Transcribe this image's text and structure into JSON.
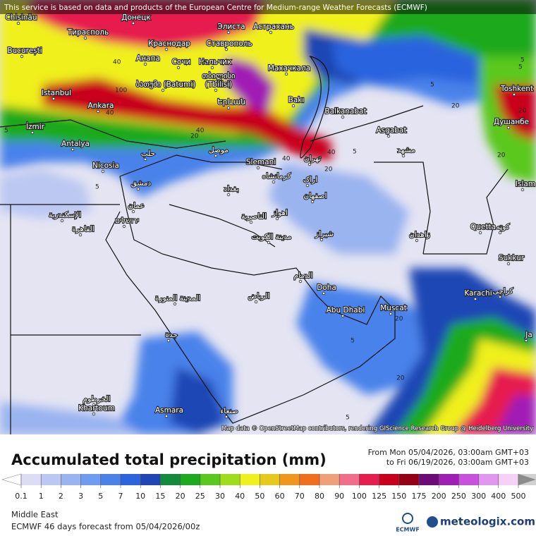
{
  "header": {
    "notice": "This service is based on data and products of the European Centre for Medium-range Weather Forecasts (ECMWF)",
    "attribution": "Map data © OpenStreetMap contributors, rendering GIScience Research Group @ Heidelberg University"
  },
  "map": {
    "cities": [
      "Chisinău",
      "Донецк",
      "Элиста",
      "Астрахань",
      "Тирасполь",
      "Краснодар",
      "Ставрополь",
      "București",
      "Анапа",
      "Сочи",
      "Нальчик",
      "ბათუმი (Batumi)",
      "თბილისი",
      "(Tbilisi)",
      "Махачкала",
      "Istanbul",
      "Bakı",
      "Ankara",
      "Երևան",
      "Balkanabat",
      "Toshkent",
      "Душанбе",
      "İzmir",
      "Asgabat",
      "Antalya",
      "Nicosia",
      "Slemani",
      "تهران",
      "مشهد",
      "حلب",
      "موصل",
      "کرمانشاه",
      "اراک",
      "دمشق",
      "بغداد",
      "اصفهان",
      "عمان",
      "ירושלים",
      "الإسكندرية",
      "القاهرة",
      "اهواز",
      "الناصرية",
      "مدينة الكويت",
      "شیراز",
      "زاهدان",
      "Quetta",
      "کوټه",
      "Sukkur",
      "الدمام",
      "Doha",
      "الرياض",
      "المدينة المنورة",
      "Karachi",
      "کراچی",
      "Abu Dhabi",
      "Muscat",
      "جدة",
      "الخرطوم",
      "Khartoum",
      "Asmara",
      "صنعاء",
      "Islam",
      "Ja"
    ],
    "contour_labels": [
      40,
      20,
      100,
      40,
      40,
      20,
      40,
      40,
      20,
      5,
      5,
      5,
      5,
      20,
      5,
      20,
      5,
      20,
      5,
      20,
      20,
      5
    ]
  },
  "legend": {
    "title": "Accumulated total precipitation (mm)",
    "from": "From Mon 05/04/2026, 03:00am GMT+03",
    "to": "to Fri 06/19/2026, 03:00am GMT+03",
    "ticks": [
      0.1,
      1,
      2,
      3,
      5,
      7,
      10,
      15,
      20,
      25,
      30,
      40,
      50,
      60,
      70,
      80,
      90,
      100,
      125,
      150,
      175,
      200,
      250,
      300,
      400,
      500
    ],
    "colors": [
      "#ffffff",
      "#dcdcf5",
      "#bcc8f2",
      "#9ab4f0",
      "#6e9cf0",
      "#4a82ea",
      "#2c64de",
      "#1e46b4",
      "#128c3c",
      "#1eaa1e",
      "#5ac81e",
      "#a0dc1e",
      "#f0f01e",
      "#e6c81e",
      "#f0961e",
      "#f06e1e",
      "#f0a078",
      "#f06e8c",
      "#e61e50",
      "#c8001e",
      "#960014",
      "#6e0a78",
      "#a01eb4",
      "#c850dc",
      "#e196f0",
      "#f5d2f5",
      "#d2d2d2",
      "#8c8c8c"
    ]
  },
  "footer": {
    "region": "Middle East",
    "model": "ECMWF 46 days forecast from  05/04/2026/00z",
    "ecmwf": "ECMWF",
    "brand": "meteologix.com"
  }
}
